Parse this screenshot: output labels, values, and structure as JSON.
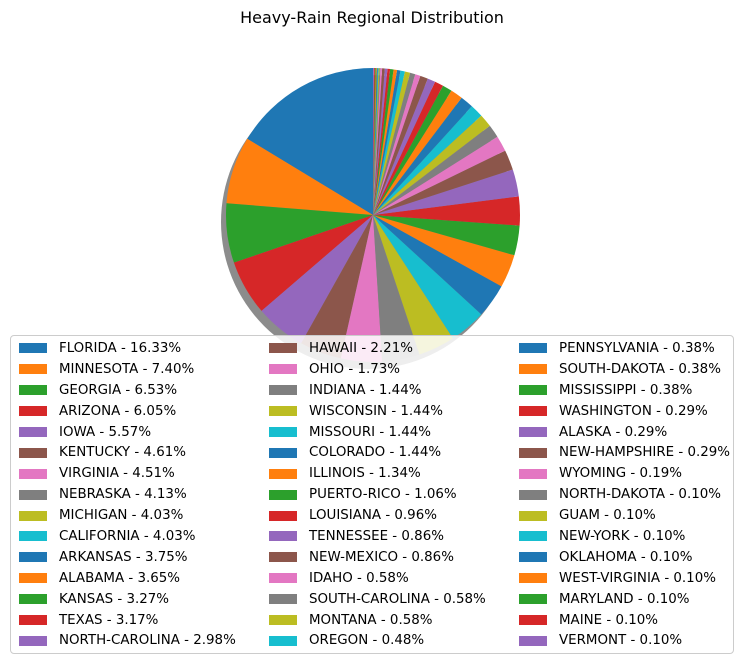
{
  "chart_data": {
    "type": "pie",
    "title": "Heavy-Rain Regional Distribution",
    "start_angle_deg": 90,
    "direction": "counterclockwise",
    "shadow": true,
    "legend_position": "lower-center",
    "legend_columns": 3,
    "unit": "%",
    "colors": [
      "#1f77b4",
      "#ff7f0e",
      "#2ca02c",
      "#d62728",
      "#9467bd",
      "#8c564b",
      "#e377c2",
      "#7f7f7f",
      "#bcbd22",
      "#17becf"
    ],
    "labels": [
      "FLORIDA",
      "MINNESOTA",
      "GEORGIA",
      "ARIZONA",
      "IOWA",
      "KENTUCKY",
      "VIRGINIA",
      "NEBRASKA",
      "MICHIGAN",
      "CALIFORNIA",
      "ARKANSAS",
      "ALABAMA",
      "KANSAS",
      "TEXAS",
      "NORTH-CAROLINA",
      "HAWAII",
      "OHIO",
      "INDIANA",
      "WISCONSIN",
      "MISSOURI",
      "COLORADO",
      "ILLINOIS",
      "PUERTO-RICO",
      "LOUISIANA",
      "TENNESSEE",
      "NEW-MEXICO",
      "IDAHO",
      "SOUTH-CAROLINA",
      "MONTANA",
      "OREGON",
      "PENNSYLVANIA",
      "SOUTH-DAKOTA",
      "MISSISSIPPI",
      "WASHINGTON",
      "ALASKA",
      "NEW-HAMPSHIRE",
      "WYOMING",
      "NORTH-DAKOTA",
      "GUAM",
      "NEW-YORK",
      "OKLAHOMA",
      "WEST-VIRGINIA",
      "MARYLAND",
      "MAINE",
      "VERMONT"
    ],
    "values": [
      16.33,
      7.4,
      6.53,
      6.05,
      5.57,
      4.61,
      4.51,
      4.13,
      4.03,
      4.03,
      3.75,
      3.65,
      3.27,
      3.17,
      2.98,
      2.21,
      1.73,
      1.44,
      1.44,
      1.44,
      1.44,
      1.34,
      1.06,
      0.96,
      0.86,
      0.86,
      0.58,
      0.58,
      0.58,
      0.48,
      0.38,
      0.38,
      0.38,
      0.29,
      0.29,
      0.29,
      0.19,
      0.1,
      0.1,
      0.1,
      0.1,
      0.1,
      0.1,
      0.1,
      0.1
    ],
    "legend_entries": [
      "FLORIDA - 16.33%",
      "MINNESOTA - 7.40%",
      "GEORGIA - 6.53%",
      "ARIZONA - 6.05%",
      "IOWA - 5.57%",
      "KENTUCKY - 4.61%",
      "VIRGINIA - 4.51%",
      "NEBRASKA - 4.13%",
      "MICHIGAN - 4.03%",
      "CALIFORNIA - 4.03%",
      "ARKANSAS - 3.75%",
      "ALABAMA - 3.65%",
      "KANSAS - 3.27%",
      "TEXAS - 3.17%",
      "NORTH-CAROLINA - 2.98%",
      "HAWAII - 2.21%",
      "OHIO - 1.73%",
      "INDIANA - 1.44%",
      "WISCONSIN - 1.44%",
      "MISSOURI - 1.44%",
      "COLORADO - 1.44%",
      "ILLINOIS - 1.34%",
      "PUERTO-RICO - 1.06%",
      "LOUISIANA - 0.96%",
      "TENNESSEE - 0.86%",
      "NEW-MEXICO - 0.86%",
      "IDAHO - 0.58%",
      "SOUTH-CAROLINA - 0.58%",
      "MONTANA - 0.58%",
      "OREGON - 0.48%",
      "PENNSYLVANIA - 0.38%",
      "SOUTH-DAKOTA - 0.38%",
      "MISSISSIPPI - 0.38%",
      "WASHINGTON - 0.29%",
      "ALASKA - 0.29%",
      "NEW-HAMPSHIRE - 0.29%",
      "WYOMING - 0.19%",
      "NORTH-DAKOTA - 0.10%",
      "GUAM - 0.10%",
      "NEW-YORK - 0.10%",
      "OKLAHOMA - 0.10%",
      "WEST-VIRGINIA - 0.10%",
      "MARYLAND - 0.10%",
      "MAINE - 0.10%",
      "VERMONT - 0.10%"
    ]
  }
}
